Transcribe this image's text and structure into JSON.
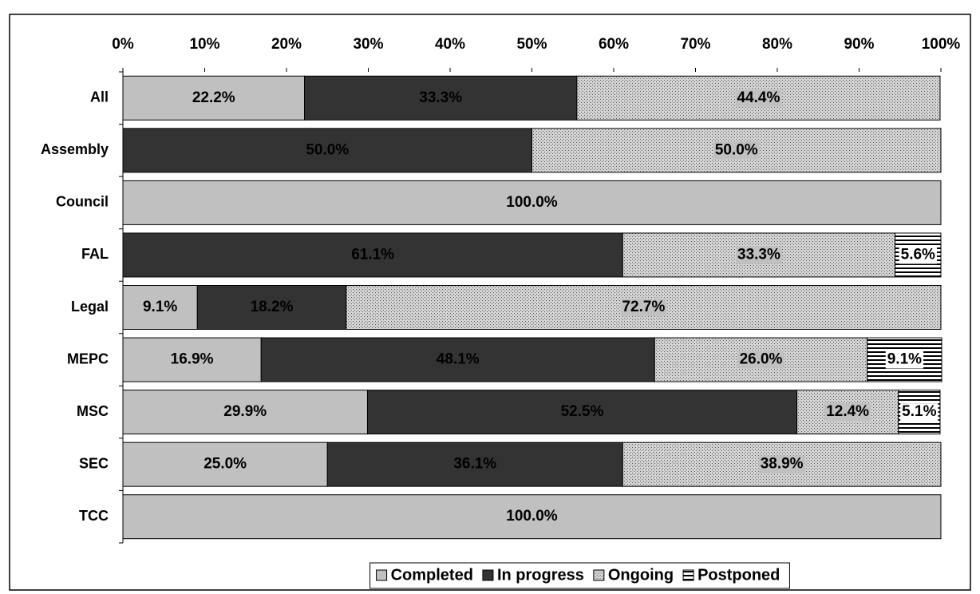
{
  "chart_data": {
    "type": "stacked-bar-horizontal",
    "categories": [
      "All",
      "Assembly",
      "Council",
      "FAL",
      "Legal",
      "MEPC",
      "MSC",
      "SEC",
      "TCC"
    ],
    "series": [
      {
        "name": "Completed",
        "color": "#c0c0c0",
        "pattern": "solid",
        "values": [
          22.2,
          0,
          100,
          0,
          9.1,
          16.9,
          29.9,
          25.0,
          100
        ],
        "value_labels": [
          "22.2%",
          null,
          "100.0%",
          null,
          "9.1%",
          "16.9%",
          "29.9%",
          "25.0%",
          "100.0%"
        ]
      },
      {
        "name": "In progress",
        "color": "#333333",
        "pattern": "solid",
        "values": [
          33.3,
          50.0,
          0,
          61.1,
          18.2,
          48.1,
          52.5,
          36.1,
          0
        ],
        "value_labels": [
          "33.3%",
          "50.0%",
          null,
          "61.1%",
          "18.2%",
          "48.1%",
          "52.5%",
          "36.1%",
          null
        ]
      },
      {
        "name": "Ongoing",
        "color": "#c0c0c0",
        "pattern": "dots",
        "values": [
          44.4,
          50.0,
          0,
          33.3,
          72.7,
          26.0,
          12.4,
          38.9,
          0
        ],
        "value_labels": [
          "44.4%",
          "50.0%",
          null,
          "33.3%",
          "72.7%",
          "26.0%",
          "12.4%",
          "38.9%",
          null
        ]
      },
      {
        "name": "Postponed",
        "color": "#000000",
        "pattern": "stripes",
        "values": [
          0,
          0,
          0,
          5.6,
          0,
          9.1,
          5.1,
          0,
          0
        ],
        "value_labels": [
          null,
          null,
          null,
          "5.6%",
          null,
          "9.1%",
          "5.1%",
          null,
          null
        ]
      }
    ],
    "xlim": [
      0,
      100
    ],
    "xticks": [
      {
        "value": 0,
        "label": "0%"
      },
      {
        "value": 10,
        "label": "10%"
      },
      {
        "value": 20,
        "label": "20%"
      },
      {
        "value": 30,
        "label": "30%"
      },
      {
        "value": 40,
        "label": "40%"
      },
      {
        "value": 50,
        "label": "50%"
      },
      {
        "value": 60,
        "label": "60%"
      },
      {
        "value": 70,
        "label": "70%"
      },
      {
        "value": 80,
        "label": "80%"
      },
      {
        "value": 90,
        "label": "90%"
      },
      {
        "value": 100,
        "label": "100%"
      }
    ],
    "legend": "bottom"
  }
}
